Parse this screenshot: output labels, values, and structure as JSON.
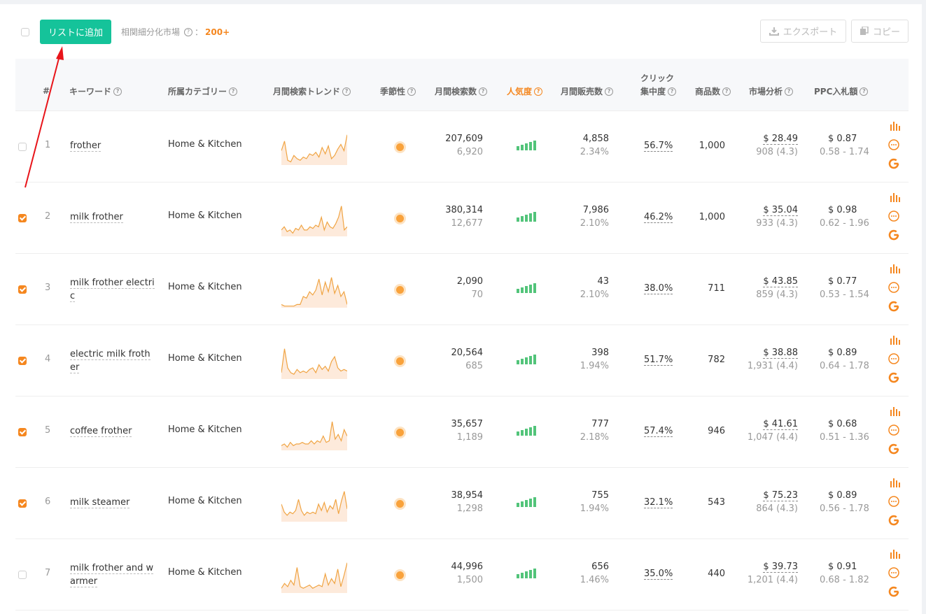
{
  "toolbar": {
    "add_to_list": "リストに追加",
    "related_label": "相関細分化市場",
    "related_colon": "：",
    "related_count": "200+",
    "export": "エクスポート",
    "copy": "コピー"
  },
  "headers": {
    "index": "#",
    "keyword": "キーワード",
    "category": "所属カテゴリー",
    "trend": "月間検索トレンド",
    "seasonality": "季節性",
    "search_volume": "月間検索数",
    "popularity": "人気度",
    "sales": "月間販売数",
    "click_line1": "クリック",
    "click_line2": "集中度",
    "products": "商品数",
    "market": "市場分析",
    "ppc": "PPC入札額"
  },
  "colors": {
    "accent": "#15c39a",
    "orange": "#f5871f",
    "green_bars": "#52c47a",
    "trend_line": "#f0a443"
  },
  "rows": [
    {
      "index": "1",
      "kw1": "frother",
      "kw2": "",
      "category": "Home & Kitchen",
      "checked": false,
      "volume": "207,609",
      "volume_sub": "6,920",
      "popularity": 5,
      "sales": "4,858",
      "sales_sub": "2.34%",
      "click": "56.7%",
      "products": "1,000",
      "price": "$ 28.49",
      "reviews": "908 (4.3)",
      "ppc": "$ 0.87",
      "ppc_range": "0.58 - 1.74",
      "trend": [
        0.45,
        0.75,
        0.15,
        0.1,
        0.3,
        0.2,
        0.15,
        0.25,
        0.2,
        0.35,
        0.3,
        0.4,
        0.25,
        0.55,
        0.35,
        0.6,
        0.2,
        0.3,
        0.5,
        0.65,
        0.45,
        0.95
      ]
    },
    {
      "index": "2",
      "kw1": "milk frother",
      "kw2": "",
      "category": "Home & Kitchen",
      "checked": true,
      "volume": "380,314",
      "volume_sub": "12,677",
      "popularity": 5,
      "sales": "7,986",
      "sales_sub": "2.10%",
      "click": "46.2%",
      "products": "1,000",
      "price": "$ 35.04",
      "reviews": "933 (4.3)",
      "ppc": "$ 0.98",
      "ppc_range": "0.62 - 1.96",
      "trend": [
        0.2,
        0.3,
        0.15,
        0.2,
        0.1,
        0.25,
        0.2,
        0.35,
        0.2,
        0.2,
        0.3,
        0.25,
        0.35,
        0.3,
        0.6,
        0.2,
        0.45,
        0.3,
        0.25,
        0.4,
        0.6,
        0.95,
        0.2,
        0.3
      ]
    },
    {
      "index": "3",
      "kw1": "milk frother electri",
      "kw2": "c",
      "category": "Home & Kitchen",
      "checked": true,
      "volume": "2,090",
      "volume_sub": "70",
      "popularity": 5,
      "sales": "43",
      "sales_sub": "2.10%",
      "click": "38.0%",
      "products": "711",
      "price": "$ 43.85",
      "reviews": "859 (4.3)",
      "ppc": "$ 0.77",
      "ppc_range": "0.53 - 1.54",
      "trend": [
        0.1,
        0.05,
        0.05,
        0.05,
        0.05,
        0.1,
        0.1,
        0.35,
        0.3,
        0.5,
        0.4,
        0.55,
        0.9,
        0.4,
        0.8,
        0.5,
        0.95,
        0.45,
        0.7,
        0.35,
        0.5,
        0.1
      ]
    },
    {
      "index": "4",
      "kw1": "electric milk froth",
      "kw2": "er",
      "category": "Home & Kitchen",
      "checked": true,
      "volume": "20,564",
      "volume_sub": "685",
      "popularity": 5,
      "sales": "398",
      "sales_sub": "1.94%",
      "click": "51.7%",
      "products": "782",
      "price": "$ 38.88",
      "reviews": "1,931 (4.4)",
      "ppc": "$ 0.89",
      "ppc_range": "0.64 - 1.78",
      "trend": [
        0.2,
        0.95,
        0.35,
        0.2,
        0.15,
        0.3,
        0.2,
        0.25,
        0.2,
        0.3,
        0.35,
        0.2,
        0.45,
        0.3,
        0.4,
        0.25,
        0.55,
        0.7,
        0.35,
        0.25,
        0.3,
        0.25
      ]
    },
    {
      "index": "5",
      "kw1": "coffee frother",
      "kw2": "",
      "category": "Home & Kitchen",
      "checked": true,
      "volume": "35,657",
      "volume_sub": "1,189",
      "popularity": 5,
      "sales": "777",
      "sales_sub": "2.18%",
      "click": "57.4%",
      "products": "946",
      "price": "$ 41.61",
      "reviews": "1,047 (4.4)",
      "ppc": "$ 0.68",
      "ppc_range": "0.51 - 1.36",
      "trend": [
        0.15,
        0.2,
        0.1,
        0.25,
        0.15,
        0.2,
        0.2,
        0.25,
        0.2,
        0.2,
        0.3,
        0.2,
        0.3,
        0.25,
        0.45,
        0.25,
        0.3,
        0.9,
        0.35,
        0.5,
        0.3,
        0.65,
        0.45
      ]
    },
    {
      "index": "6",
      "kw1": "milk steamer",
      "kw2": "",
      "category": "Home & Kitchen",
      "checked": true,
      "volume": "38,954",
      "volume_sub": "1,298",
      "popularity": 5,
      "sales": "755",
      "sales_sub": "1.94%",
      "click": "32.1%",
      "products": "543",
      "price": "$ 75.23",
      "reviews": "864 (4.3)",
      "ppc": "$ 0.89",
      "ppc_range": "0.56 - 1.78",
      "trend": [
        0.55,
        0.3,
        0.2,
        0.3,
        0.25,
        0.35,
        0.7,
        0.35,
        0.2,
        0.3,
        0.25,
        0.3,
        0.25,
        0.55,
        0.35,
        0.6,
        0.3,
        0.5,
        0.4,
        0.7,
        0.25,
        0.65,
        0.95,
        0.4
      ]
    },
    {
      "index": "7",
      "kw1": "milk frother and w",
      "kw2": "armer",
      "category": "Home & Kitchen",
      "checked": false,
      "volume": "44,996",
      "volume_sub": "1,500",
      "popularity": 5,
      "sales": "656",
      "sales_sub": "1.46%",
      "click": "35.0%",
      "products": "440",
      "price": "$ 39.73",
      "reviews": "1,201 (4.4)",
      "ppc": "$ 0.91",
      "ppc_range": "0.68 - 1.82",
      "trend": [
        0.15,
        0.3,
        0.2,
        0.4,
        0.25,
        0.8,
        0.2,
        0.15,
        0.2,
        0.25,
        0.15,
        0.2,
        0.25,
        0.2,
        0.6,
        0.25,
        0.45,
        0.3,
        0.75,
        0.2,
        0.55,
        0.95
      ]
    }
  ]
}
